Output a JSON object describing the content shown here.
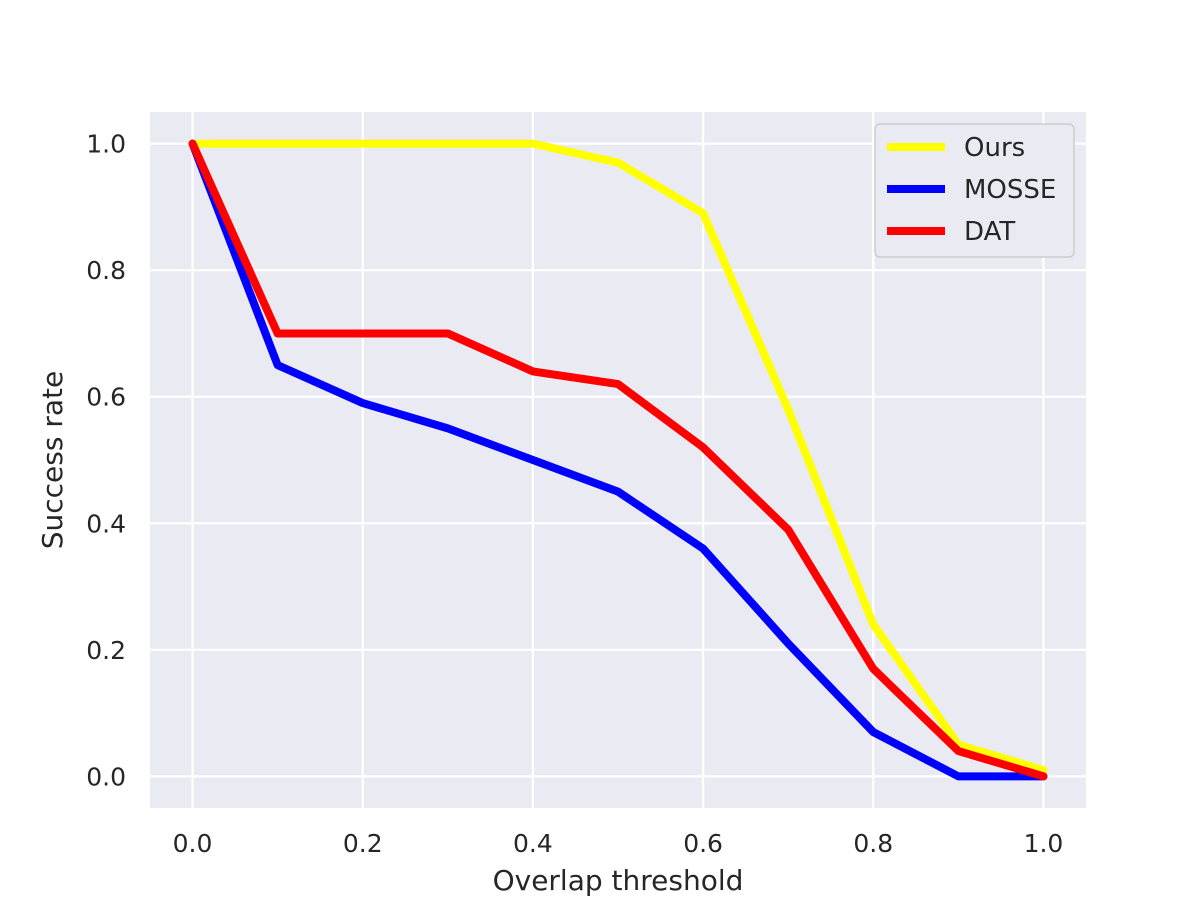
{
  "chart_data": {
    "type": "line",
    "title": "",
    "xlabel": "Overlap threshold",
    "ylabel": "Success rate",
    "xlim": [
      -0.05,
      1.05
    ],
    "ylim": [
      -0.05,
      1.05
    ],
    "grid": true,
    "legend_position": "top-right",
    "background_color": "#EAEAF2",
    "x_ticks": [
      "0.0",
      "0.2",
      "0.4",
      "0.6",
      "0.8",
      "1.0"
    ],
    "y_ticks": [
      "0.0",
      "0.2",
      "0.4",
      "0.6",
      "0.8",
      "1.0"
    ],
    "x": [
      0.0,
      0.1,
      0.2,
      0.3,
      0.4,
      0.5,
      0.6,
      0.7,
      0.8,
      0.9,
      1.0
    ],
    "series": [
      {
        "name": "Ours",
        "color": "#FFFF00",
        "values": [
          1.0,
          1.0,
          1.0,
          1.0,
          1.0,
          0.97,
          0.89,
          0.58,
          0.24,
          0.05,
          0.01
        ]
      },
      {
        "name": "MOSSE",
        "color": "#0000FF",
        "values": [
          1.0,
          0.65,
          0.59,
          0.55,
          0.5,
          0.45,
          0.36,
          0.21,
          0.07,
          0.0,
          0.0
        ]
      },
      {
        "name": "DAT",
        "color": "#FF0000",
        "values": [
          1.0,
          0.7,
          0.7,
          0.7,
          0.64,
          0.62,
          0.52,
          0.39,
          0.17,
          0.04,
          0.0
        ]
      }
    ]
  }
}
